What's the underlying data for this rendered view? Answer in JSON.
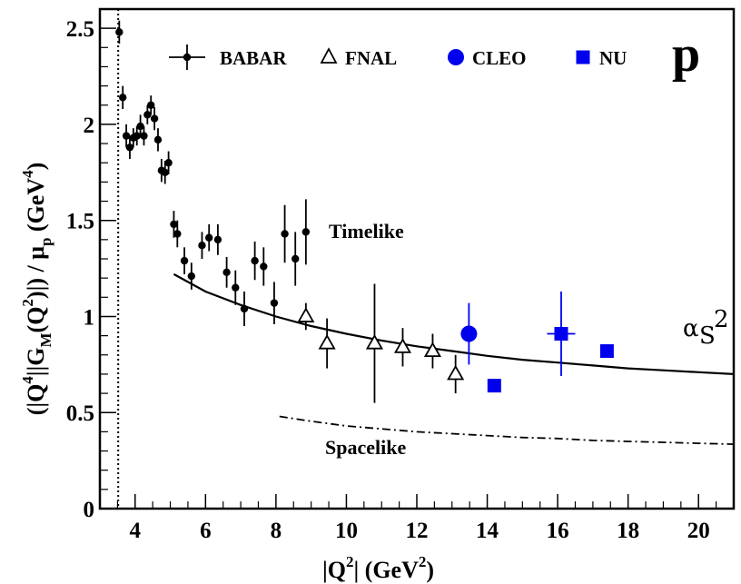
{
  "chart_data": {
    "type": "scatter",
    "xlabel_main": "|Q",
    "xlabel_sup": "2",
    "xlabel_rest": "|  (GeV",
    "xlabel_sup2": "2",
    "xlabel_end": ")",
    "ylabel_parts": {
      "a": "(|Q",
      "a_sup": "4",
      "b": "||G",
      "b_sub": "M",
      "c": "(Q",
      "c_sup": "2",
      "d": ")|) / μ",
      "d_sub": "p",
      "e": "  (GeV",
      "e_sup": "4",
      "f": ")"
    },
    "xlim": [
      3,
      21
    ],
    "ylim": [
      0,
      2.6
    ],
    "x_ticks": [
      4,
      6,
      8,
      10,
      12,
      14,
      16,
      18,
      20
    ],
    "x_tick_labels": [
      "4",
      "6",
      "8",
      "10",
      "12",
      "14",
      "16",
      "18",
      "20"
    ],
    "y_ticks": [
      0,
      0.5,
      1,
      1.5,
      2,
      2.5
    ],
    "y_tick_labels": [
      "0",
      "0.5",
      "1",
      "1.5",
      "2",
      "2.5"
    ],
    "threshold_x": 3.52,
    "corner_label": "p",
    "annotations": {
      "timelike": "Timelike",
      "spacelike": "Spacelike",
      "alpha_base": "α",
      "alpha_sub": "S",
      "alpha_sup": "2"
    },
    "legend": [
      {
        "label": "BABAR",
        "marker": "dot-errorbar",
        "color": "#000000"
      },
      {
        "label": "FNAL",
        "marker": "open-triangle",
        "color": "#000000"
      },
      {
        "label": "CLEO",
        "marker": "circle",
        "color": "#0000ee"
      },
      {
        "label": "NU",
        "marker": "square",
        "color": "#0000ee"
      }
    ],
    "series": [
      {
        "name": "BABAR",
        "marker": "dot",
        "color": "#000000",
        "points": [
          [
            3.55,
            2.48,
            0.06
          ],
          [
            3.65,
            2.14,
            0.06
          ],
          [
            3.75,
            1.94,
            0.06
          ],
          [
            3.85,
            1.88,
            0.06
          ],
          [
            3.95,
            1.93,
            0.05
          ],
          [
            4.05,
            1.94,
            0.05
          ],
          [
            4.15,
            1.99,
            0.06
          ],
          [
            4.25,
            1.94,
            0.05
          ],
          [
            4.35,
            2.05,
            0.05
          ],
          [
            4.45,
            2.1,
            0.05
          ],
          [
            4.55,
            2.03,
            0.06
          ],
          [
            4.65,
            1.92,
            0.06
          ],
          [
            4.75,
            1.76,
            0.06
          ],
          [
            4.85,
            1.75,
            0.06
          ],
          [
            4.95,
            1.8,
            0.06
          ],
          [
            5.1,
            1.48,
            0.07
          ],
          [
            5.2,
            1.43,
            0.07
          ],
          [
            5.4,
            1.29,
            0.07
          ],
          [
            5.6,
            1.21,
            0.07
          ],
          [
            5.9,
            1.37,
            0.07
          ],
          [
            6.1,
            1.41,
            0.07
          ],
          [
            6.35,
            1.4,
            0.08
          ],
          [
            6.6,
            1.23,
            0.08
          ],
          [
            6.85,
            1.15,
            0.09
          ],
          [
            7.1,
            1.04,
            0.09
          ],
          [
            7.4,
            1.29,
            0.1
          ],
          [
            7.65,
            1.26,
            0.1
          ],
          [
            7.95,
            1.07,
            0.11
          ],
          [
            8.25,
            1.43,
            0.15
          ],
          [
            8.55,
            1.3,
            0.14
          ],
          [
            8.85,
            1.44,
            0.17
          ]
        ]
      },
      {
        "name": "FNAL",
        "marker": "open-triangle",
        "color": "#000000",
        "points": [
          [
            8.85,
            1.0,
            0.07
          ],
          [
            9.45,
            0.86,
            0.13
          ],
          [
            10.8,
            0.86,
            0.31
          ],
          [
            11.6,
            0.84,
            0.1
          ],
          [
            12.45,
            0.82,
            0.09
          ],
          [
            13.1,
            0.7,
            0.1
          ]
        ]
      },
      {
        "name": "CLEO",
        "marker": "circle",
        "color": "#0000ee",
        "points": [
          [
            13.48,
            0.91,
            0.16
          ]
        ]
      },
      {
        "name": "NU",
        "marker": "square",
        "color": "#0000ee",
        "points": [
          [
            14.2,
            0.64,
            0.0,
            0.0
          ],
          [
            16.1,
            0.91,
            0.22,
            0.4
          ],
          [
            17.4,
            0.82,
            0.03,
            0.0
          ]
        ]
      }
    ],
    "curves": {
      "alpha_s2": {
        "style": "solid",
        "points": [
          [
            5.1,
            1.22
          ],
          [
            6,
            1.13
          ],
          [
            7,
            1.06
          ],
          [
            8,
            1.0
          ],
          [
            9,
            0.95
          ],
          [
            10,
            0.91
          ],
          [
            11,
            0.875
          ],
          [
            12,
            0.845
          ],
          [
            13,
            0.82
          ],
          [
            14,
            0.795
          ],
          [
            15,
            0.775
          ],
          [
            16,
            0.76
          ],
          [
            17,
            0.745
          ],
          [
            18,
            0.73
          ],
          [
            19,
            0.72
          ],
          [
            20,
            0.71
          ],
          [
            21,
            0.7
          ]
        ]
      },
      "spacelike": {
        "style": "dash-dot",
        "points": [
          [
            8.1,
            0.48
          ],
          [
            9,
            0.455
          ],
          [
            10,
            0.43
          ],
          [
            11,
            0.415
          ],
          [
            12,
            0.4
          ],
          [
            13,
            0.39
          ],
          [
            14,
            0.38
          ],
          [
            15,
            0.37
          ],
          [
            16,
            0.365
          ],
          [
            17,
            0.355
          ],
          [
            18,
            0.35
          ],
          [
            19,
            0.345
          ],
          [
            20,
            0.34
          ],
          [
            21,
            0.335
          ]
        ]
      }
    }
  }
}
